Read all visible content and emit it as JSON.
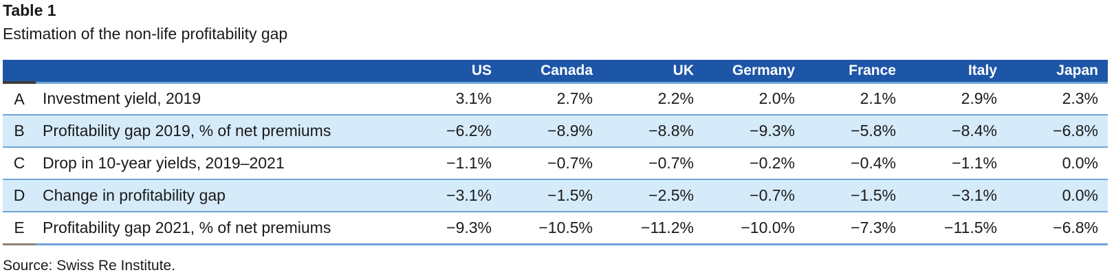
{
  "title": "Table 1",
  "subtitle": "Estimation of the non-life profitability gap",
  "source": "Source: Swiss Re Institute.",
  "colors": {
    "header_bg": "#1E56A7",
    "alt_row_bg": "#D6EBFA",
    "separator": "#6FA3D6",
    "stub_dark": "#3B3B3A",
    "bottom_gray": "#8A8071",
    "header_text": "#FFFFFF",
    "body_text": "#1A1A1A"
  },
  "table": {
    "columns": [
      "US",
      "Canada",
      "UK",
      "Germany",
      "France",
      "Italy",
      "Japan"
    ],
    "rows": [
      {
        "letter": "A",
        "label": "Investment yield, 2019",
        "values": [
          "3.1%",
          "2.7%",
          "2.2%",
          "2.0%",
          "2.1%",
          "2.9%",
          "2.3%"
        ]
      },
      {
        "letter": "B",
        "label": "Profitability gap 2019, % of net premiums",
        "values": [
          "−6.2%",
          "−8.9%",
          "−8.8%",
          "−9.3%",
          "−5.8%",
          "−8.4%",
          "−6.8%"
        ]
      },
      {
        "letter": "C",
        "label": "Drop in 10-year yields, 2019–2021",
        "values": [
          "−1.1%",
          "−0.7%",
          "−0.7%",
          "−0.2%",
          "−0.4%",
          "−1.1%",
          "0.0%"
        ]
      },
      {
        "letter": "D",
        "label": "Change in profitability gap",
        "values": [
          "−3.1%",
          "−1.5%",
          "−2.5%",
          "−0.7%",
          "−1.5%",
          "−3.1%",
          "0.0%"
        ]
      },
      {
        "letter": "E",
        "label": "Profitability gap 2021, % of net premiums",
        "values": [
          "−9.3%",
          "−10.5%",
          "−11.2%",
          "−10.0%",
          "−7.3%",
          "−11.5%",
          "−6.8%"
        ]
      }
    ]
  },
  "chart_data": {
    "type": "table",
    "title": "Table 1",
    "subtitle": "Estimation of the non-life profitability gap",
    "categories": [
      "US",
      "Canada",
      "UK",
      "Germany",
      "France",
      "Italy",
      "Japan"
    ],
    "series": [
      {
        "name": "A — Investment yield, 2019",
        "values": [
          3.1,
          2.7,
          2.2,
          2.0,
          2.1,
          2.9,
          2.3
        ]
      },
      {
        "name": "B — Profitability gap 2019, % of net premiums",
        "values": [
          -6.2,
          -8.9,
          -8.8,
          -9.3,
          -5.8,
          -8.4,
          -6.8
        ]
      },
      {
        "name": "C — Drop in 10-year yields, 2019–2021",
        "values": [
          -1.1,
          -0.7,
          -0.7,
          -0.2,
          -0.4,
          -1.1,
          0.0
        ]
      },
      {
        "name": "D — Change in profitability gap",
        "values": [
          -3.1,
          -1.5,
          -2.5,
          -0.7,
          -1.5,
          -3.1,
          0.0
        ]
      },
      {
        "name": "E — Profitability gap 2021, % of net premiums",
        "values": [
          -9.3,
          -10.5,
          -11.2,
          -10.0,
          -7.3,
          -11.5,
          -6.8
        ]
      }
    ],
    "unit": "%"
  }
}
